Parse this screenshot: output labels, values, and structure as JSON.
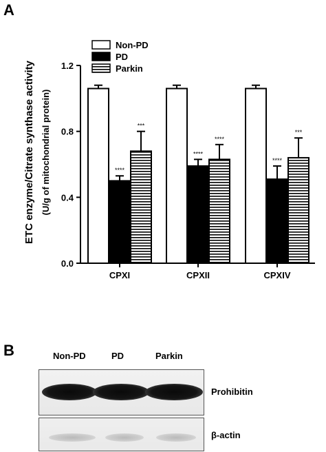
{
  "panels": {
    "a_label": "A",
    "b_label": "B"
  },
  "chart_data": {
    "type": "bar",
    "ylabel_line1": "ETC enzyme/Citrate synthase activity",
    "ylabel_line2": "(U/g of mitochondrial protein)",
    "categories": [
      "CPXI",
      "CPXII",
      "CPXIV"
    ],
    "ylim": [
      0.0,
      1.2
    ],
    "yticks": [
      "0.0",
      "0.4",
      "0.8",
      "1.2"
    ],
    "legend_position": "top-left",
    "series": [
      {
        "name": "Non-PD",
        "fill": "white",
        "values": [
          1.06,
          1.06,
          1.06
        ],
        "errors": [
          0.02,
          0.02,
          0.02
        ],
        "significance": [
          "",
          "",
          ""
        ]
      },
      {
        "name": "PD",
        "fill": "black",
        "values": [
          0.5,
          0.59,
          0.51
        ],
        "errors": [
          0.03,
          0.04,
          0.08
        ],
        "significance": [
          "****",
          "****",
          "****"
        ]
      },
      {
        "name": "Parkin",
        "fill": "horizontal-stripes",
        "values": [
          0.68,
          0.63,
          0.64
        ],
        "errors": [
          0.12,
          0.09,
          0.12
        ],
        "significance": [
          "***",
          "****",
          "***"
        ]
      }
    ]
  },
  "western_blot": {
    "lanes": [
      "Non-PD",
      "PD",
      "Parkin"
    ],
    "rows": [
      {
        "label": "Prohibitin",
        "intensity": "strong"
      },
      {
        "label": "β-actin",
        "intensity": "weak"
      }
    ]
  },
  "colors": {
    "bar_outline": "#000000",
    "pd_fill": "#000000",
    "nonpd_fill": "#ffffff"
  }
}
